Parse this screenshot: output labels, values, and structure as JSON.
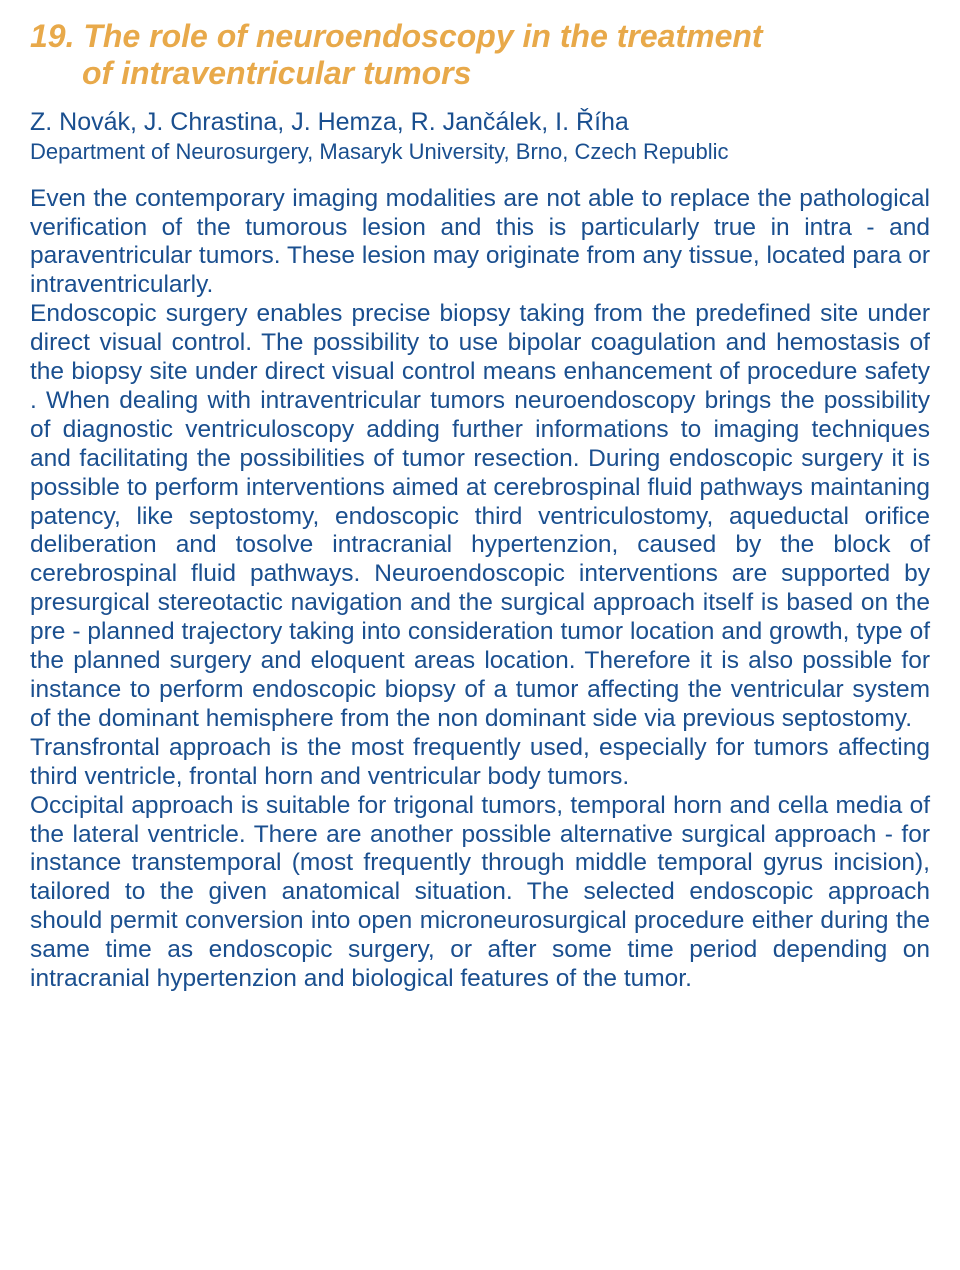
{
  "title": {
    "number": "19.",
    "line1": "The role of neuroendoscopy in the treatment",
    "line2": "of intraventricular tumors"
  },
  "authors": "Z. Novák, J. Chrastina, J. Hemza, R. Jančálek, I. Říha",
  "affiliation": "Department of Neurosurgery, Masaryk University, Brno, Czech Republic",
  "paragraphs": {
    "p1": "Even the contemporary imaging modalities are not able to replace the pathological verification of the tumorous lesion and this is particularly true in intra - and paraventricular tumors. These lesion may originate from any tissue, located para or intraventricularly.",
    "p2": "Endoscopic surgery enables precise biopsy taking from the predefined site under direct visual control. The possibility to use bipolar coagulation and hemostasis of the biopsy site under direct visual control means enhancement of procedure safety . When dealing with intraventricular tumors neuroendoscopy brings the possibility of diagnostic ventriculoscopy adding further informations to imaging techniques and facilitating the possibilities of tumor resection. During endoscopic surgery it is possible to perform interventions aimed at cerebrospinal fluid pathways maintaning patency, like septostomy, endoscopic third ventriculostomy, aqueductal orifice deliberation and tosolve intracranial hypertenzion, caused by the block of cerebrospinal fluid pathways. Neuroendoscopic interventions are supported by presurgical stereotactic navigation and the surgical approach itself is based on the pre - planned trajectory taking into consideration tumor location and growth, type of the planned surgery and eloquent areas location. Therefore it is also possible for instance to perform endoscopic biopsy of a tumor affecting the ventricular system of the dominant hemisphere from the non dominant side via previous septostomy.",
    "p3": "Transfrontal approach is the most frequently used, especially for tumors affecting third ventricle, frontal horn and ventricular body tumors.",
    "p4": "Occipital approach is suitable for trigonal tumors, temporal horn and cella media of the lateral ventricle. There are another possible alternative surgical approach - for instance transtemporal (most frequently through middle temporal gyrus incision), tailored to the given anatomical situation. The selected endoscopic approach should permit conversion into open microneurosurgical procedure either during the same time as endoscopic surgery, or after some time period depending on intracranial hypertenzion and biological features of the tumor."
  },
  "colors": {
    "title_color": "#e8a94a",
    "body_color": "#1a4f8f",
    "background": "#ffffff"
  },
  "typography": {
    "title_fontsize": 32,
    "authors_fontsize": 25,
    "affiliation_fontsize": 22,
    "body_fontsize": 24.5,
    "title_weight": 600,
    "body_weight": 400,
    "title_style": "italic"
  }
}
